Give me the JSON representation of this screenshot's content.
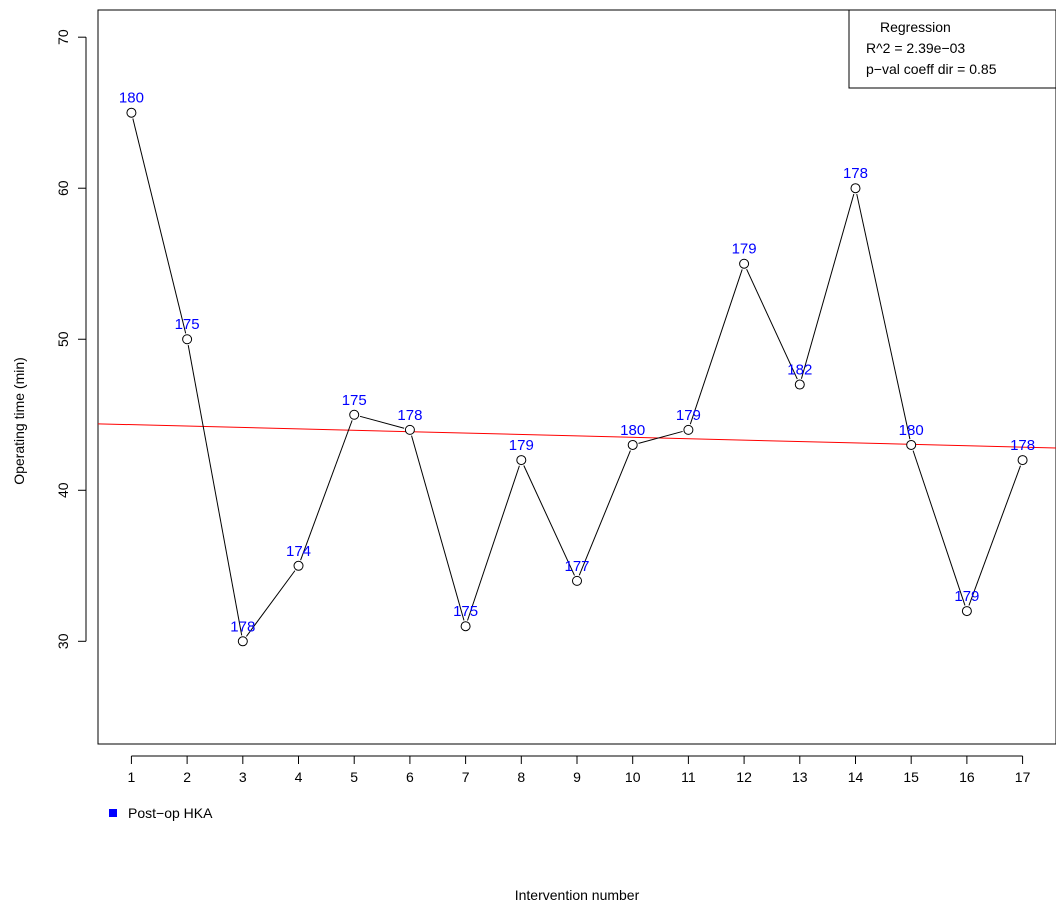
{
  "chart_data": {
    "type": "line",
    "title": "",
    "xlabel": "Intervention number",
    "ylabel": "Operating time (min)",
    "x": [
      1,
      2,
      3,
      4,
      5,
      6,
      7,
      8,
      9,
      10,
      11,
      12,
      13,
      14,
      15,
      16,
      17
    ],
    "y": [
      65,
      50,
      30,
      35,
      45,
      44,
      31,
      42,
      34,
      43,
      44,
      55,
      47,
      60,
      43,
      32,
      42
    ],
    "point_labels": [
      "180",
      "175",
      "178",
      "174",
      "175",
      "178",
      "175",
      "179",
      "177",
      "180",
      "179",
      "179",
      "182",
      "178",
      "180",
      "179",
      "178"
    ],
    "xlim": [
      0.4,
      17.6
    ],
    "ylim": [
      23.2,
      71.8
    ],
    "x_ticks": [
      1,
      2,
      3,
      4,
      5,
      6,
      7,
      8,
      9,
      10,
      11,
      12,
      13,
      14,
      15,
      16,
      17
    ],
    "y_ticks": [
      30,
      40,
      50,
      60,
      70
    ],
    "regression": {
      "y_at_xmin": 44.4,
      "y_at_xmax": 42.8,
      "color": "#ff0000"
    },
    "regression_box": {
      "title": "Regression",
      "r2": "R^2 = 2.39e−03",
      "pval": "p−val coeff dir = 0.85",
      "placement": "top-right"
    },
    "legend": {
      "label": "Post−op HKA",
      "color": "#0000ff",
      "placement": "bottom-left"
    },
    "line_color": "#000000",
    "label_color": "#0000ff",
    "grid": false
  }
}
